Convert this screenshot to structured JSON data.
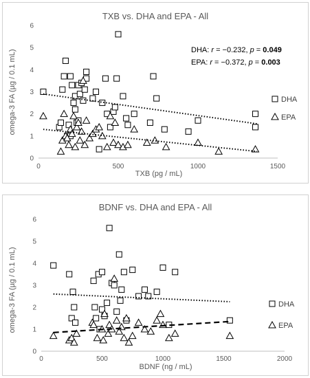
{
  "chart_data": [
    {
      "type": "scatter",
      "title": "TXB vs. DHA and EPA - All",
      "xlabel": "TXB (pg / mL)",
      "ylabel": "omega-3 FA (µg / 0.1 mL)",
      "xlim": [
        0,
        1500
      ],
      "ylim": [
        0,
        6
      ],
      "xticks": [
        "0",
        "500",
        "1000",
        "1500"
      ],
      "yticks": [
        "0",
        "1",
        "2",
        "3",
        "4",
        "5",
        "6"
      ],
      "legend": [
        "DHA",
        "EPA"
      ],
      "annotation_lines": [
        {
          "prefix": "DHA: ",
          "r_label": "r",
          "r_text": " = −0.232, ",
          "p_label": "p",
          "p_text": " = ",
          "p_value": "0.049"
        },
        {
          "prefix": "EPA: ",
          "r_label": "r",
          "r_text": " = −0.372, ",
          "p_label": "p",
          "p_value": "0.003",
          "p_text": " = "
        }
      ],
      "series": [
        {
          "name": "DHA",
          "marker": "square",
          "trendline": {
            "style": "dotted",
            "x": [
              30,
              1370
            ],
            "y": [
              2.9,
              1.55
            ]
          },
          "x": [
            30,
            130,
            140,
            150,
            160,
            170,
            180,
            190,
            200,
            200,
            210,
            220,
            230,
            230,
            240,
            250,
            250,
            260,
            270,
            280,
            290,
            300,
            300,
            340,
            360,
            380,
            400,
            420,
            430,
            450,
            470,
            480,
            490,
            500,
            530,
            550,
            560,
            600,
            700,
            720,
            740,
            790,
            940,
            1000,
            1360,
            1360
          ],
          "y": [
            3.0,
            1.4,
            1.6,
            3.1,
            3.7,
            4.4,
            1.0,
            1.5,
            3.7,
            1.0,
            3.3,
            2.5,
            2.2,
            2.8,
            1.6,
            3.3,
            1.7,
            2.9,
            3.4,
            2.6,
            3.1,
            3.6,
            3.9,
            2.7,
            3.0,
            0.4,
            2.5,
            3.6,
            2.0,
            1.4,
            2.1,
            2.3,
            3.6,
            5.6,
            2.8,
            1.8,
            1.5,
            2.0,
            1.6,
            3.7,
            2.7,
            1.3,
            1.2,
            1.7,
            2.0,
            1.4
          ]
        },
        {
          "name": "EPA",
          "marker": "triangle",
          "trendline": {
            "style": "dotted",
            "x": [
              30,
              1370
            ],
            "y": [
              1.3,
              0.3
            ]
          },
          "x": [
            30,
            140,
            150,
            160,
            170,
            180,
            190,
            200,
            210,
            220,
            230,
            240,
            250,
            260,
            270,
            280,
            290,
            300,
            320,
            340,
            360,
            380,
            400,
            430,
            450,
            470,
            480,
            500,
            530,
            560,
            600,
            680,
            730,
            800,
            1000,
            1130,
            1360
          ],
          "y": [
            1.9,
            0.3,
            0.8,
            2.0,
            1.0,
            0.9,
            0.6,
            1.3,
            1.1,
            1.9,
            0.5,
            1.4,
            1.6,
            0.8,
            1.2,
            3.5,
            0.6,
            1.7,
            0.9,
            1.1,
            1.3,
            1.4,
            1.0,
            0.5,
            1.9,
            0.7,
            1.6,
            0.6,
            0.5,
            0.6,
            1.3,
            0.7,
            0.8,
            0.5,
            0.7,
            0.3,
            0.4
          ]
        }
      ]
    },
    {
      "type": "scatter",
      "title": "BDNF vs. DHA  and EPA - All",
      "xlabel": "BDNF (ng / mL)",
      "ylabel": "omega-3 FA (µg / 0.1 mL)",
      "xlim": [
        0,
        2000
      ],
      "ylim": [
        0,
        6
      ],
      "xticks": [
        "0",
        "500",
        "1000",
        "1500",
        "2000"
      ],
      "yticks": [
        "0",
        "1",
        "2",
        "3",
        "4",
        "5",
        "6"
      ],
      "legend": [
        "DHA",
        "EPA"
      ],
      "series": [
        {
          "name": "DHA",
          "marker": "square",
          "trendline": {
            "style": "dotted",
            "x": [
              100,
              1550
            ],
            "y": [
              2.6,
              2.25
            ]
          },
          "x": [
            100,
            230,
            250,
            260,
            270,
            280,
            430,
            440,
            450,
            470,
            480,
            500,
            500,
            520,
            540,
            560,
            580,
            600,
            620,
            640,
            650,
            660,
            680,
            700,
            750,
            800,
            850,
            880,
            950,
            1000,
            1050,
            1100,
            1550
          ],
          "y": [
            3.9,
            3.5,
            1.5,
            2.7,
            2.0,
            1.3,
            3.2,
            2.0,
            1.5,
            3.5,
            1.0,
            1.9,
            3.6,
            1.6,
            2.2,
            5.6,
            3.1,
            3.0,
            1.8,
            4.4,
            2.3,
            2.8,
            3.6,
            1.4,
            3.7,
            2.5,
            2.8,
            2.5,
            2.7,
            3.8,
            1.2,
            3.6,
            1.4
          ]
        },
        {
          "name": "EPA",
          "marker": "triangle",
          "trendline": {
            "style": "dashed",
            "x": [
              100,
              1550
            ],
            "y": [
              0.85,
              1.35
            ]
          },
          "x": [
            100,
            230,
            250,
            270,
            290,
            420,
            430,
            460,
            500,
            510,
            520,
            550,
            560,
            580,
            600,
            620,
            640,
            660,
            680,
            700,
            720,
            750,
            800,
            850,
            900,
            950,
            980,
            1000,
            1050,
            1100,
            1550
          ],
          "y": [
            0.7,
            0.5,
            0.6,
            0.4,
            0.8,
            1.3,
            1.2,
            0.6,
            1.0,
            0.5,
            1.7,
            0.8,
            1.2,
            1.0,
            3.3,
            1.4,
            0.9,
            1.1,
            0.6,
            1.5,
            0.4,
            0.7,
            1.3,
            1.0,
            0.9,
            1.4,
            1.7,
            1.2,
            0.6,
            0.8,
            0.7
          ]
        }
      ]
    }
  ]
}
